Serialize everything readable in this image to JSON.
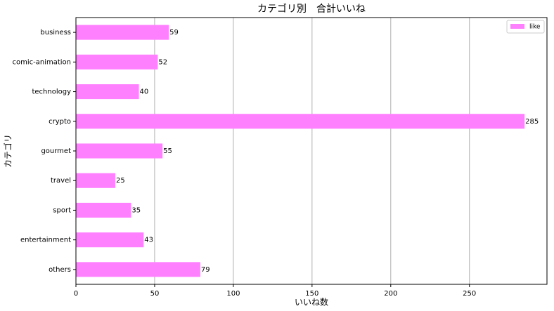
{
  "chart_data": {
    "type": "barh",
    "title": "カテゴリ別　合計いいね",
    "xlabel": "いいね数",
    "ylabel": "カテゴリ",
    "categories": [
      "business",
      "comic-animation",
      "technology",
      "crypto",
      "gourmet",
      "travel",
      "sport",
      "entertainment",
      "others"
    ],
    "series": [
      {
        "name": "like",
        "color": "#ff80ff",
        "values": [
          59,
          52,
          40,
          285,
          55,
          25,
          35,
          43,
          79
        ]
      }
    ],
    "xlim": [
      0,
      299.25
    ],
    "xticks": [
      0,
      50,
      100,
      150,
      200,
      250
    ],
    "grid": "x",
    "legend": "upper right"
  }
}
